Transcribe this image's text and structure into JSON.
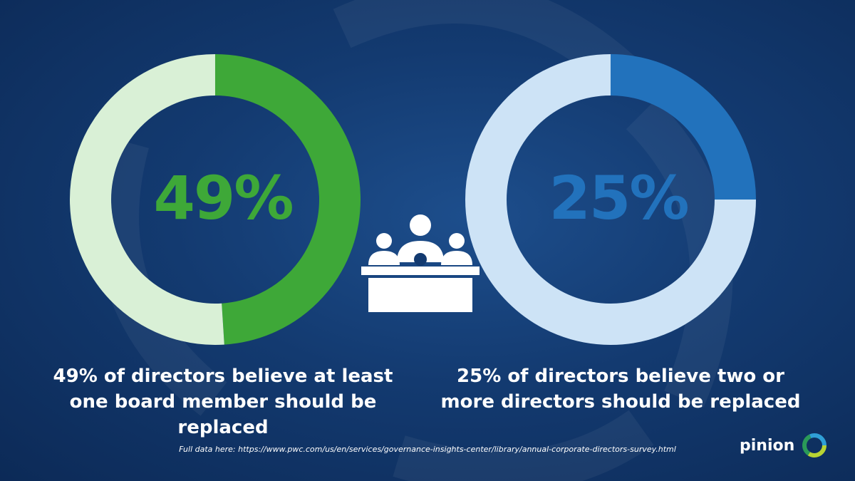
{
  "colors": {
    "green": "#3ea838",
    "green_light": "#d9f0d6",
    "blue": "#2272bc",
    "blue_light": "#cde3f6"
  },
  "chart_data": [
    {
      "type": "pie",
      "variant": "donut",
      "values": [
        49,
        51
      ],
      "highlight_index": 0,
      "center_label": "49%",
      "caption": "49% of directors believe at least one board member should be replaced"
    },
    {
      "type": "pie",
      "variant": "donut",
      "values": [
        25,
        75
      ],
      "highlight_index": 0,
      "center_label": "25%",
      "caption": "25% of directors believe two or more directors should be replaced"
    }
  ],
  "center_icon": "boardroom-meeting-icon",
  "source_text": "Full data here: https://www.pwc.com/us/en/services/governance-insights-center/library/annual-corporate-directors-survey.html",
  "brand": {
    "name": "pinion",
    "logo_icon": "pinion-ring-logo"
  }
}
